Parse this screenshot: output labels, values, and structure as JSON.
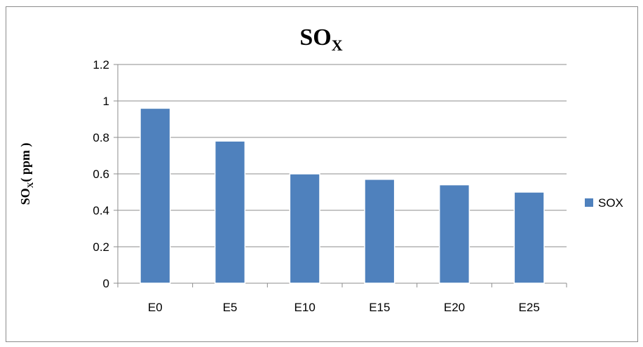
{
  "chart_data": {
    "type": "bar",
    "title": {
      "main": "SO",
      "subscript": "X"
    },
    "ylabel": {
      "main": "SO",
      "subscript": "X",
      "suffix": "( ppm )"
    },
    "xlabel": "",
    "categories": [
      "E0",
      "E5",
      "E10",
      "E15",
      "E20",
      "E25"
    ],
    "series": [
      {
        "name": "SOX",
        "values": [
          0.96,
          0.78,
          0.6,
          0.57,
          0.54,
          0.5
        ],
        "color": "#4f81bd"
      }
    ],
    "ylim": [
      0,
      1.2
    ],
    "yticks": [
      "0",
      "0.2",
      "0.4",
      "0.6",
      "0.8",
      "1",
      "1.2"
    ],
    "grid": true,
    "legend_position": "right"
  }
}
